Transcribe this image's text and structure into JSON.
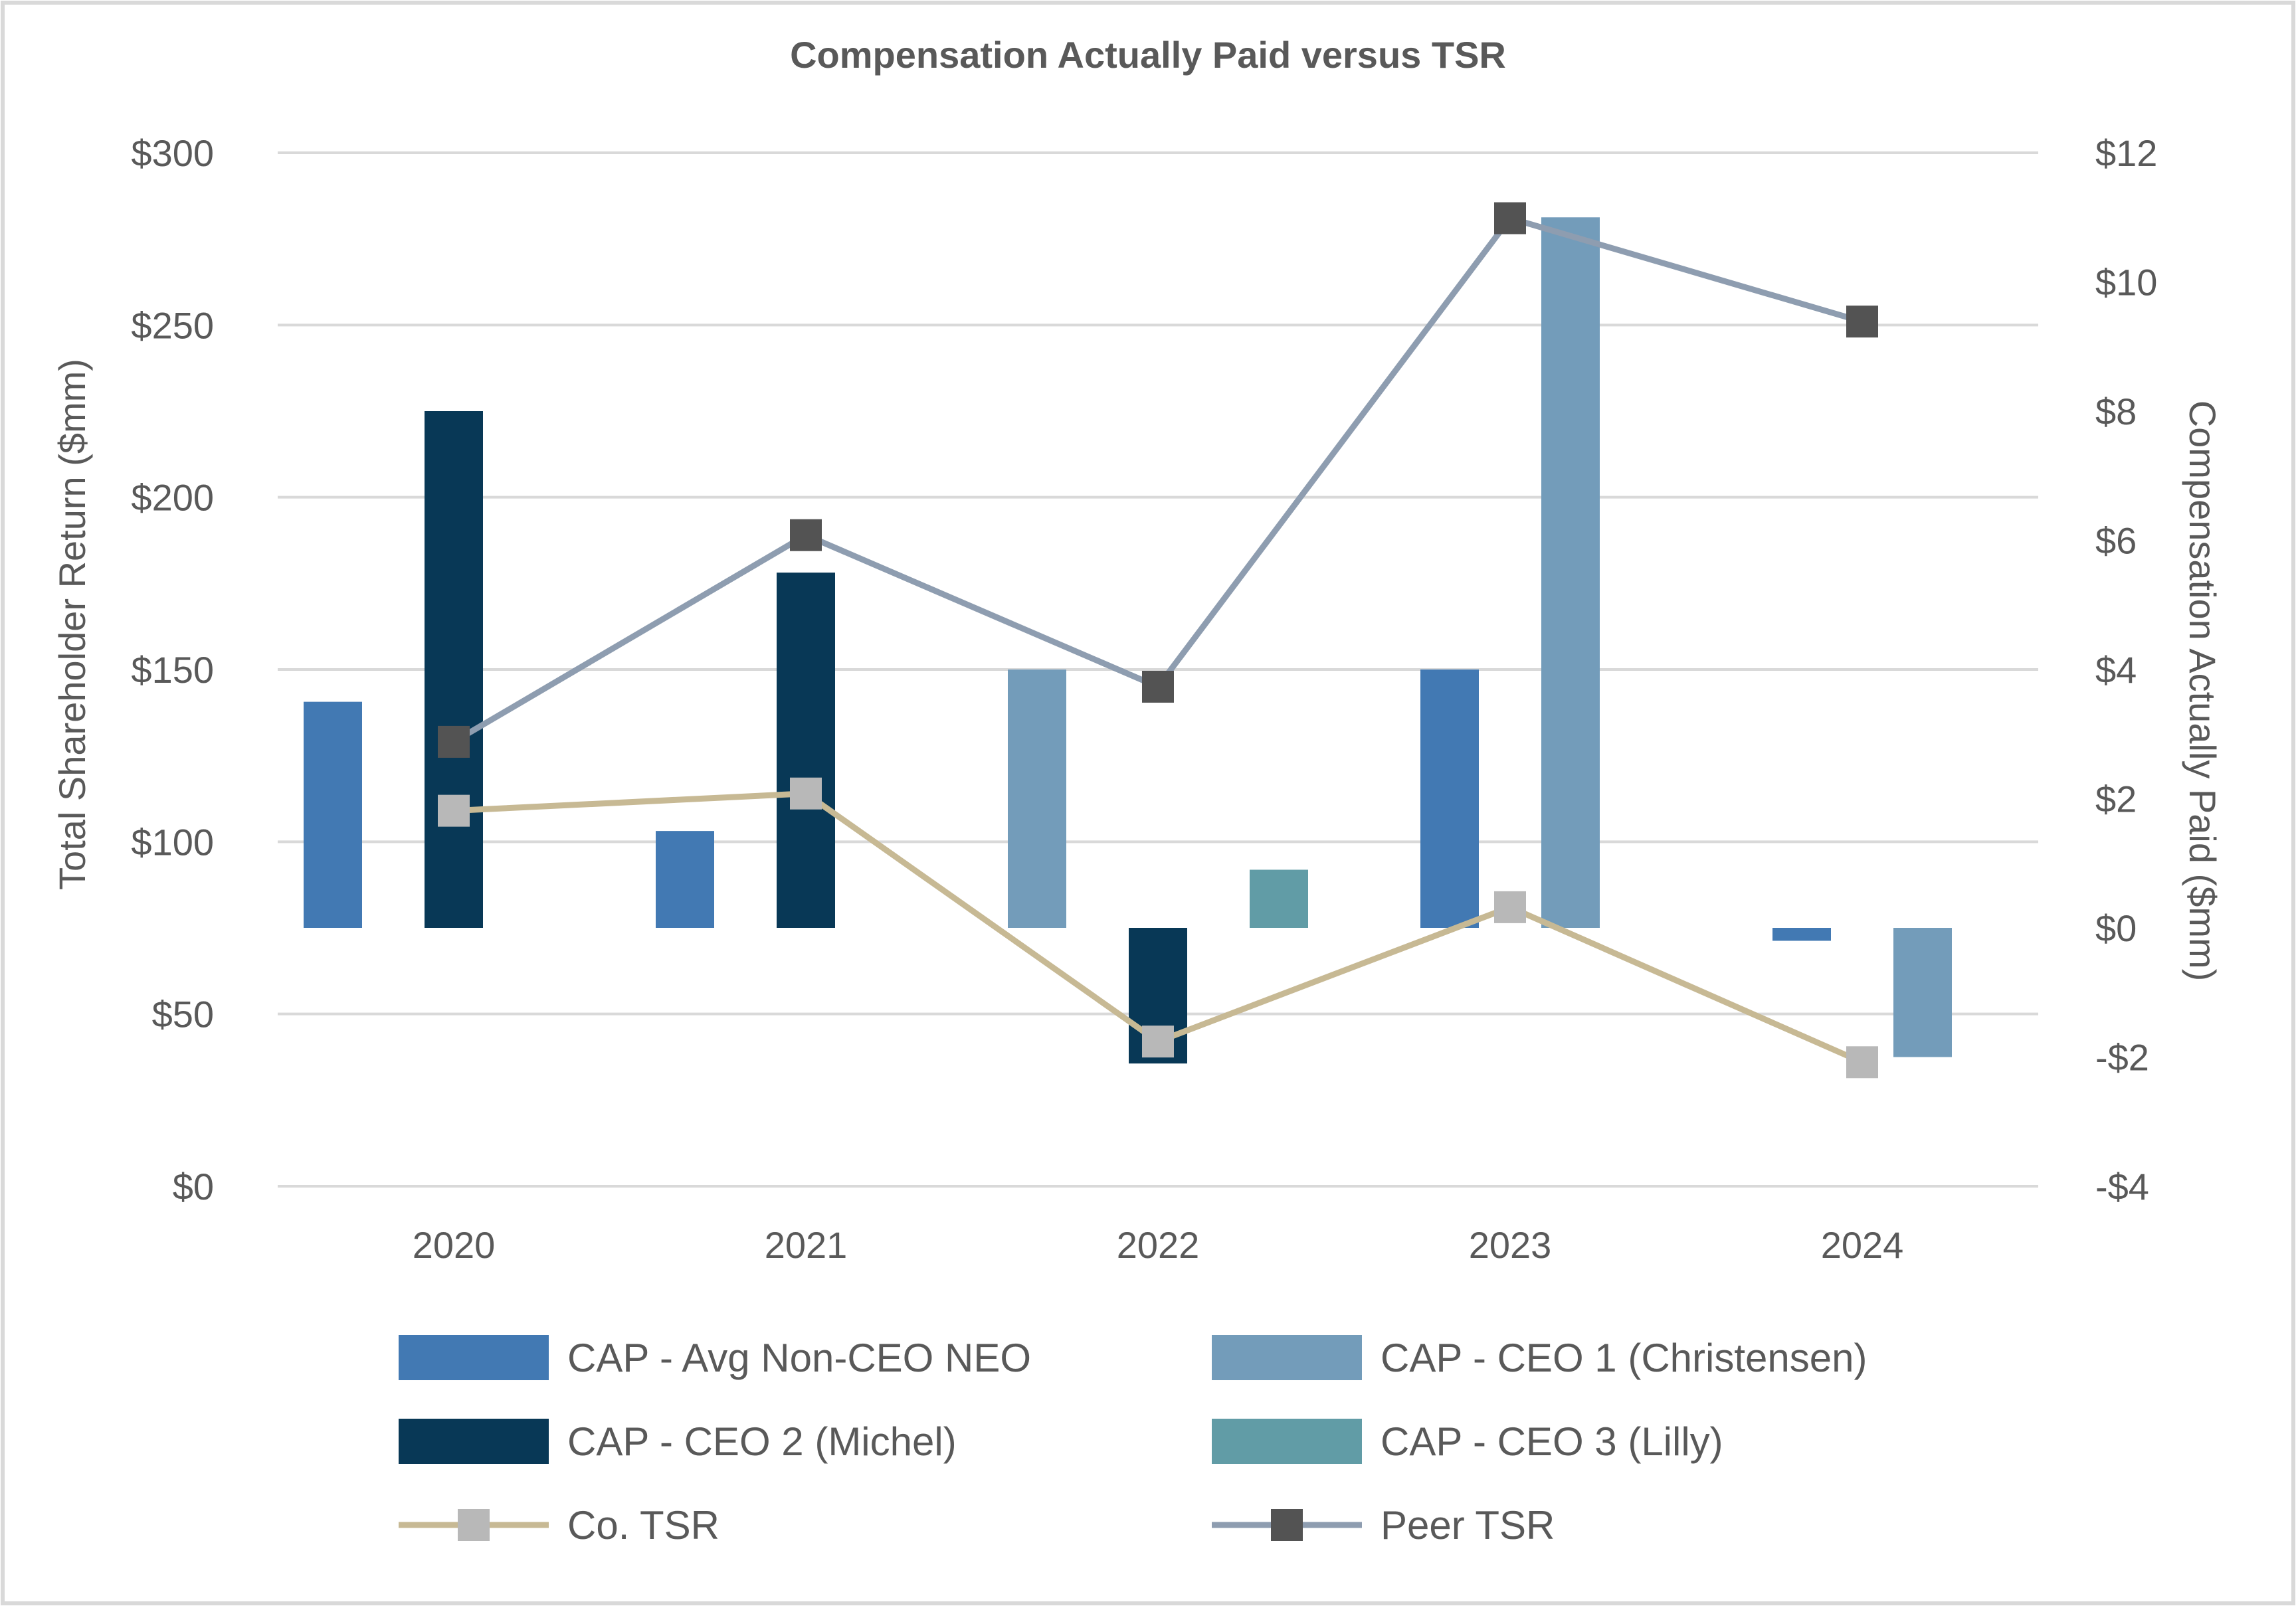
{
  "chart_data": {
    "type": "bar",
    "title": "Compensation Actually Paid versus TSR",
    "categories": [
      "2020",
      "2021",
      "2022",
      "2023",
      "2024"
    ],
    "left_axis": {
      "label": "Total Shareholder Return ($mm)",
      "ylim": [
        0,
        300
      ],
      "ticks": [
        0,
        50,
        100,
        150,
        200,
        250,
        300
      ],
      "tick_labels": [
        "$0",
        "$50",
        "$100",
        "$150",
        "$200",
        "$250",
        "$300"
      ]
    },
    "right_axis": {
      "label": "Compensation Actually Paid ($mm)",
      "ylim": [
        -4,
        12
      ],
      "ticks": [
        -4,
        -2,
        0,
        2,
        4,
        6,
        8,
        10,
        12
      ],
      "tick_labels": [
        "-$4",
        "-$2",
        "$0",
        "$2",
        "$4",
        "$6",
        "$8",
        "$10",
        "$12"
      ]
    },
    "bar_series": [
      {
        "name": "CAP - Avg Non-CEO NEO",
        "color": "#4279B3",
        "axis": "right",
        "values": [
          3.5,
          1.5,
          null,
          4.0,
          -0.2
        ]
      },
      {
        "name": "CAP - CEO 1 (Christensen)",
        "color": "#739CBA",
        "axis": "right",
        "values": [
          null,
          null,
          4.0,
          11.0,
          -2.0
        ]
      },
      {
        "name": "CAP - CEO 2 (Michel)",
        "color": "#083856",
        "axis": "right",
        "values": [
          8.0,
          5.5,
          -2.1,
          null,
          null
        ]
      },
      {
        "name": "CAP - CEO 3 (Lilly)",
        "color": "#619CA6",
        "axis": "right",
        "values": [
          null,
          null,
          0.9,
          null,
          null
        ]
      }
    ],
    "line_series": [
      {
        "name": "Co. TSR",
        "line_color": "#C7B994",
        "marker_color": "#B8B8B8",
        "axis": "left",
        "values": [
          109,
          114,
          42,
          81,
          36
        ]
      },
      {
        "name": "Peer TSR",
        "line_color": "#8E9DB0",
        "marker_color": "#535353",
        "axis": "left",
        "values": [
          129,
          189,
          145,
          281,
          251
        ]
      }
    ],
    "legend": [
      {
        "label": "CAP - Avg Non-CEO NEO",
        "kind": "bar",
        "color": "#4279B3"
      },
      {
        "label": "CAP - CEO 1 (Christensen)",
        "kind": "bar",
        "color": "#739CBA"
      },
      {
        "label": "CAP - CEO 2 (Michel)",
        "kind": "bar",
        "color": "#083856"
      },
      {
        "label": "CAP - CEO 3 (Lilly)",
        "kind": "bar",
        "color": "#619CA6"
      },
      {
        "label": "Co. TSR",
        "kind": "line",
        "color": "#C7B994",
        "marker": "#B8B8B8"
      },
      {
        "label": "Peer TSR",
        "kind": "line",
        "color": "#8E9DB0",
        "marker": "#535353"
      }
    ],
    "legend_position": "bottom",
    "grid": true
  }
}
